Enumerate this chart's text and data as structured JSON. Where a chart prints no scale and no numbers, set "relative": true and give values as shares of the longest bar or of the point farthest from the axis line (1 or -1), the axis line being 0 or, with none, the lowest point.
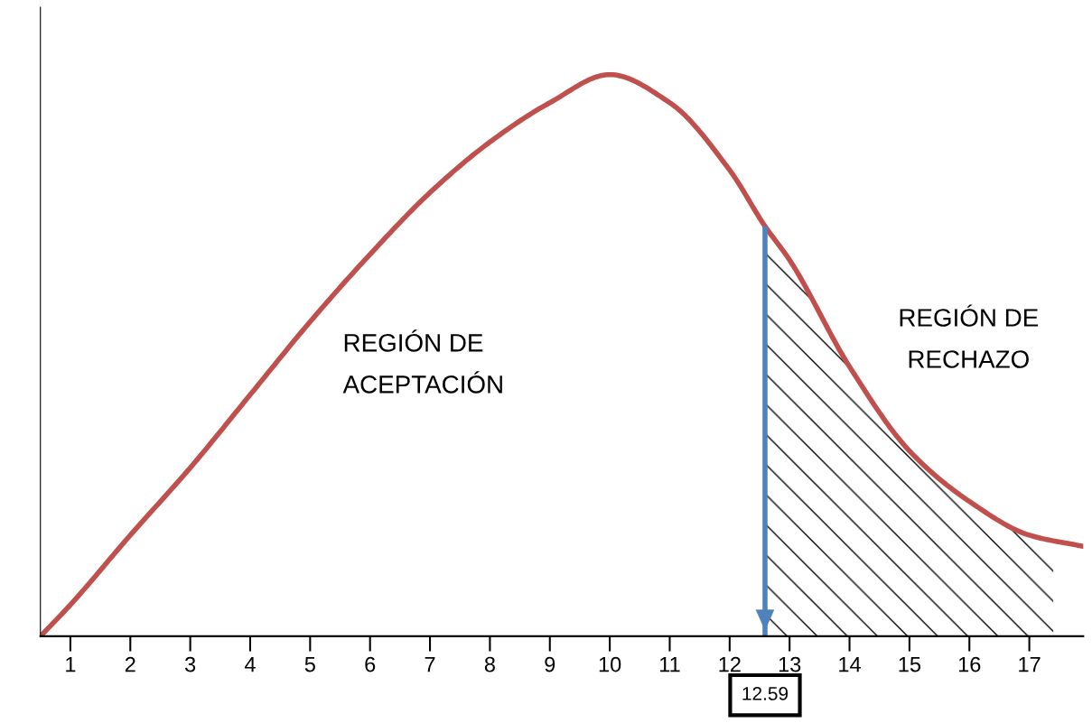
{
  "chart_data": {
    "type": "line",
    "relative": true,
    "x": [
      0.5,
      1,
      2,
      3,
      4,
      5,
      6,
      7,
      8,
      9,
      10,
      11,
      12,
      12.59,
      13,
      14,
      15,
      16,
      17,
      17.9
    ],
    "series": [
      {
        "color": "#c0504d",
        "values": [
          0,
          0.056,
          0.18,
          0.3,
          0.43,
          0.56,
          0.68,
          0.79,
          0.88,
          0.95,
          1.0,
          0.95,
          0.83,
          0.73,
          0.67,
          0.48,
          0.33,
          0.24,
          0.18,
          0.16
        ]
      }
    ],
    "xlim": [
      0.5,
      17.9
    ],
    "xticks": [
      1,
      2,
      3,
      4,
      5,
      6,
      7,
      8,
      9,
      10,
      11,
      12,
      13,
      14,
      15,
      16,
      17
    ],
    "ref_lines": [
      {
        "axis": "x",
        "value": 12.59,
        "label": "12.59",
        "color": "#4f81bd"
      }
    ],
    "bands": [
      {
        "axis": "x",
        "from": 12.59,
        "to": 17.4,
        "color": "#000000"
      }
    ],
    "annotations": [
      "REGIÓN DE\nACEPTACIÓN",
      "REGIÓN DE\nRECHAZO"
    ],
    "grid": false,
    "legend": false,
    "marker": "none",
    "line_style": "solid"
  }
}
